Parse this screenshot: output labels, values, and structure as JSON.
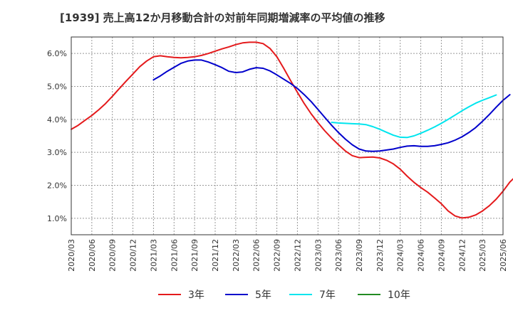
{
  "chart_data": {
    "type": "line",
    "title": "[1939]  売上高12か月移動合計の対前年同期増減率の平均値の推移",
    "xlabel": "",
    "ylabel": "",
    "ylim": [
      0.5,
      6.5
    ],
    "y_ticks": [
      "1.0%",
      "2.0%",
      "3.0%",
      "4.0%",
      "5.0%",
      "6.0%"
    ],
    "y_tick_values": [
      1.0,
      2.0,
      3.0,
      4.0,
      5.0,
      6.0
    ],
    "x_ticks": [
      "2020/03",
      "2020/06",
      "2020/09",
      "2020/12",
      "2021/03",
      "2021/06",
      "2021/09",
      "2021/12",
      "2022/03",
      "2022/06",
      "2022/09",
      "2022/12",
      "2023/03",
      "2023/06",
      "2023/09",
      "2023/12",
      "2024/03",
      "2024/06",
      "2024/09",
      "2024/12",
      "2025/03",
      "2025/06"
    ],
    "grid": true,
    "legend_position": "bottom",
    "series": [
      {
        "name": "3年",
        "color": "#e41a1c",
        "start_index": 0,
        "values": [
          3.7,
          3.82,
          3.97,
          4.12,
          4.29,
          4.48,
          4.7,
          4.93,
          5.16,
          5.38,
          5.6,
          5.77,
          5.9,
          5.93,
          5.9,
          5.88,
          5.87,
          5.88,
          5.9,
          5.94,
          6.0,
          6.07,
          6.14,
          6.2,
          6.27,
          6.32,
          6.34,
          6.34,
          6.3,
          6.15,
          5.9,
          5.55,
          5.18,
          4.82,
          4.48,
          4.17,
          3.9,
          3.65,
          3.43,
          3.23,
          3.04,
          2.9,
          2.84,
          2.85,
          2.86,
          2.83,
          2.76,
          2.65,
          2.49,
          2.28,
          2.09,
          1.93,
          1.79,
          1.62,
          1.44,
          1.22,
          1.07,
          1.01,
          1.03,
          1.1,
          1.22,
          1.38,
          1.58,
          1.82,
          2.1,
          2.3
        ]
      },
      {
        "name": "5年",
        "color": "#0000cc",
        "start_index": 12,
        "values": [
          5.2,
          5.32,
          5.46,
          5.58,
          5.7,
          5.77,
          5.8,
          5.8,
          5.74,
          5.66,
          5.57,
          5.46,
          5.42,
          5.44,
          5.52,
          5.57,
          5.55,
          5.47,
          5.35,
          5.22,
          5.09,
          4.94,
          4.75,
          4.54,
          4.3,
          4.06,
          3.82,
          3.6,
          3.4,
          3.23,
          3.1,
          3.04,
          3.03,
          3.04,
          3.07,
          3.1,
          3.15,
          3.19,
          3.2,
          3.18,
          3.18,
          3.2,
          3.24,
          3.29,
          3.37,
          3.47,
          3.6,
          3.75,
          3.94,
          4.15,
          4.37,
          4.58,
          4.75
        ]
      },
      {
        "name": "7年",
        "color": "#00e5ee",
        "start_index": 38,
        "values": [
          3.91,
          3.89,
          3.88,
          3.87,
          3.86,
          3.84,
          3.78,
          3.7,
          3.61,
          3.52,
          3.46,
          3.45,
          3.5,
          3.58,
          3.67,
          3.77,
          3.88,
          4.0,
          4.13,
          4.26,
          4.38,
          4.49,
          4.58,
          4.66,
          4.74
        ]
      },
      {
        "name": "10年",
        "color": "#228b22",
        "start_index": 0,
        "values": []
      }
    ]
  }
}
